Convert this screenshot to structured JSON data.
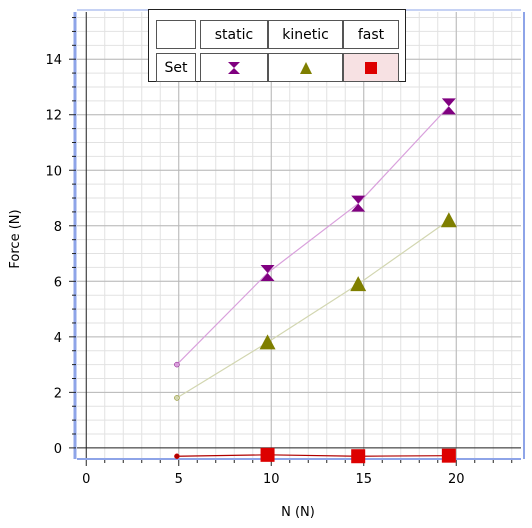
{
  "chart_data": {
    "type": "line",
    "xlabel": "N (N)",
    "ylabel": "Force (N)",
    "xlim": [
      -0.5,
      23.5
    ],
    "ylim": [
      -0.4,
      15.7
    ],
    "x_ticks": [
      0,
      5,
      10,
      15,
      20
    ],
    "y_ticks": [
      0,
      2,
      4,
      6,
      8,
      10,
      12,
      14
    ],
    "grid": true,
    "legend_placement": "top-center",
    "series": [
      {
        "name": "static",
        "marker": "hourglass",
        "color": "#800080",
        "line_color": "#d9a0dc",
        "x": [
          4.9,
          9.8,
          14.7,
          19.6
        ],
        "y": [
          3.0,
          6.3,
          8.8,
          12.3
        ],
        "first_point_marker": "small-circle"
      },
      {
        "name": "kinetic",
        "marker": "triangle",
        "color": "#7f7f00",
        "line_color": "#d2d6b0",
        "x": [
          4.9,
          9.8,
          14.7,
          19.6
        ],
        "y": [
          1.8,
          3.8,
          5.9,
          8.2
        ],
        "first_point_marker": "small-circle"
      },
      {
        "name": "fast",
        "marker": "square",
        "color": "#dd0000",
        "line_color": "#b00000",
        "x": [
          4.9,
          9.8,
          14.7,
          19.6
        ],
        "y": [
          -0.3,
          -0.25,
          -0.3,
          -0.28
        ],
        "first_point_marker": "small-circle"
      }
    ]
  },
  "legend": {
    "header_blank": "",
    "col_static": "static",
    "col_kinetic": "kinetic",
    "col_fast": "fast",
    "row_label": "Set",
    "selected_column": "fast"
  },
  "colors": {
    "grid_major": "#b8b8b8",
    "grid_minor": "#e2e2e2",
    "axis_accent": "#8ea4e8"
  }
}
